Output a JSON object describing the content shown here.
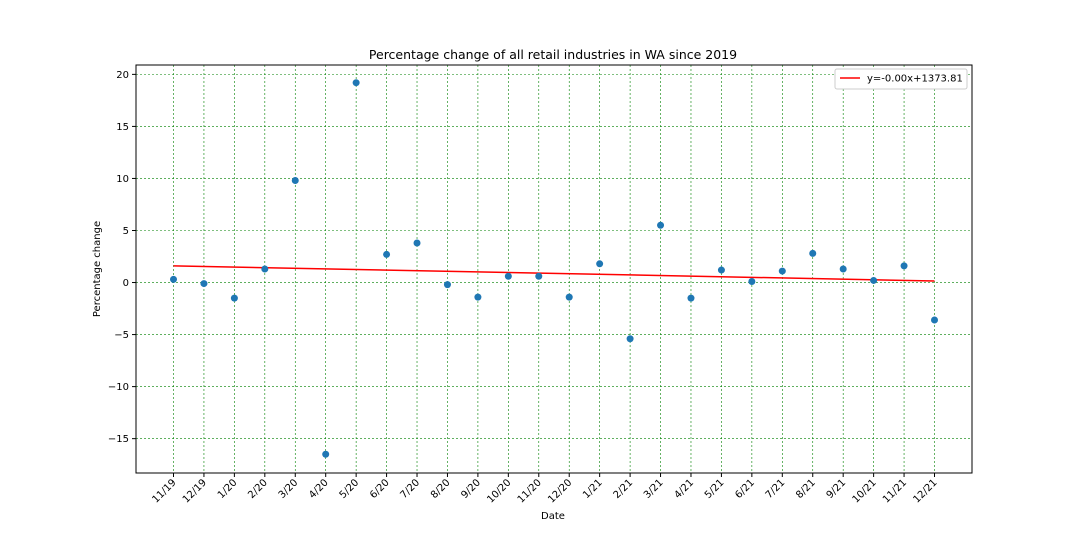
{
  "chart_data": {
    "type": "scatter",
    "title": "Percentage change of all retail industries in WA since 2019",
    "xlabel": "Date",
    "ylabel": "Percentage change",
    "categories": [
      "11/19",
      "12/19",
      "1/20",
      "2/20",
      "3/20",
      "4/20",
      "5/20",
      "6/20",
      "7/20",
      "8/20",
      "9/20",
      "10/20",
      "11/20",
      "12/20",
      "1/21",
      "2/21",
      "3/21",
      "4/21",
      "5/21",
      "6/21",
      "7/21",
      "8/21",
      "9/21",
      "10/21",
      "11/21",
      "12/21"
    ],
    "values": [
      0.3,
      -0.1,
      -1.5,
      1.3,
      9.8,
      -16.5,
      19.2,
      2.7,
      3.8,
      -0.2,
      -1.4,
      0.6,
      0.6,
      -1.4,
      1.8,
      -5.4,
      5.5,
      -1.5,
      1.2,
      0.1,
      1.1,
      2.8,
      1.3,
      0.2,
      1.6,
      -3.6
    ],
    "trendline": {
      "label": "y=-0.00x+1373.81",
      "start_value": 1.6,
      "end_value": 0.15,
      "color": "#ff0000"
    },
    "yticks": [
      -15,
      -10,
      -5,
      0,
      5,
      10,
      15,
      20
    ],
    "ylim": [
      -18.3,
      20.9
    ],
    "grid": true,
    "grid_color": "#008000",
    "point_color": "#1f77b4",
    "legend_position": "top-right"
  }
}
